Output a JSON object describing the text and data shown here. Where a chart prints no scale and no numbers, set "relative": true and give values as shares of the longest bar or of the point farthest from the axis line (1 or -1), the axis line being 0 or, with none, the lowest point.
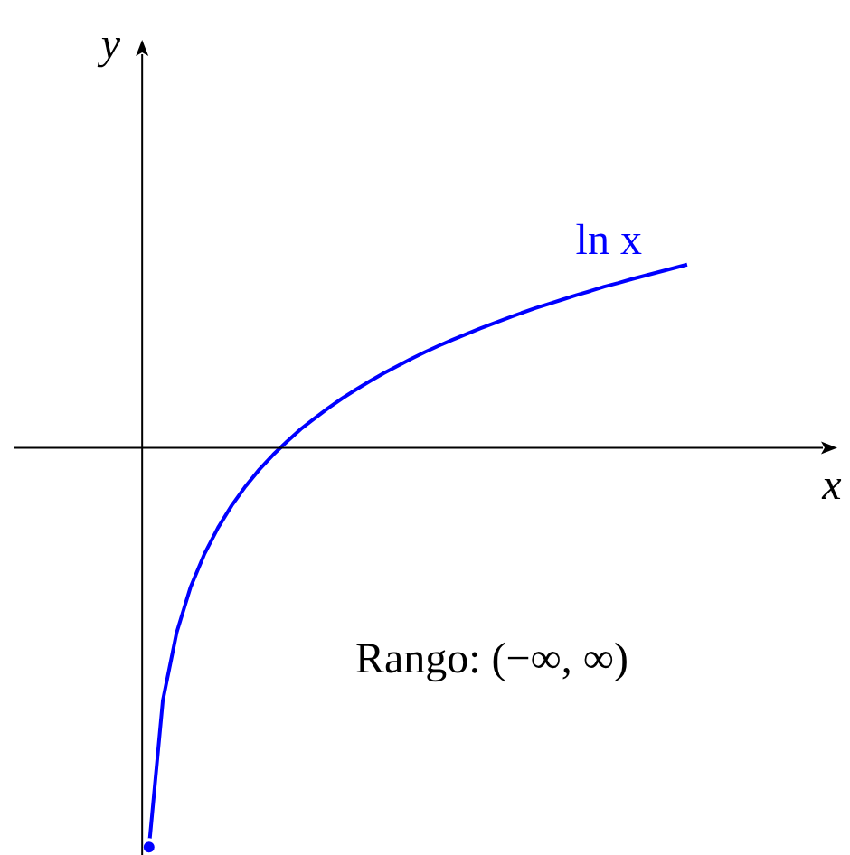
{
  "chart_data": {
    "type": "line",
    "relative": true,
    "xlabel": "x",
    "ylabel": "y",
    "categories": [
      null,
      null,
      null,
      null,
      null,
      null,
      null,
      null,
      null,
      null,
      null,
      null,
      null,
      null,
      null,
      null,
      null,
      null,
      null,
      null,
      null,
      null,
      null,
      null,
      null,
      null,
      null,
      null,
      null,
      null,
      null,
      null,
      null,
      null,
      null,
      null,
      null,
      null,
      null,
      null
    ],
    "series": [
      {
        "name": "ln x",
        "color": "#0000ff",
        "values": [
          -1,
          -0.633,
          -0.463,
          -0.35,
          -0.267,
          -0.2,
          -0.144,
          -0.096,
          -0.054,
          -0.017,
          0.016,
          0.047,
          0.074,
          0.1,
          0.124,
          0.146,
          0.167,
          0.187,
          0.205,
          0.223,
          0.24,
          0.256,
          0.271,
          0.285,
          0.299,
          0.312,
          0.325,
          0.338,
          0.35,
          0.361,
          0.372,
          0.383,
          0.393,
          0.404,
          0.413,
          0.423,
          0.432,
          0.441,
          0.45,
          0.459
        ]
      }
    ],
    "annotations": [
      "Rango: (−∞, ∞)"
    ],
    "marker": "none",
    "line_style": "solid"
  }
}
